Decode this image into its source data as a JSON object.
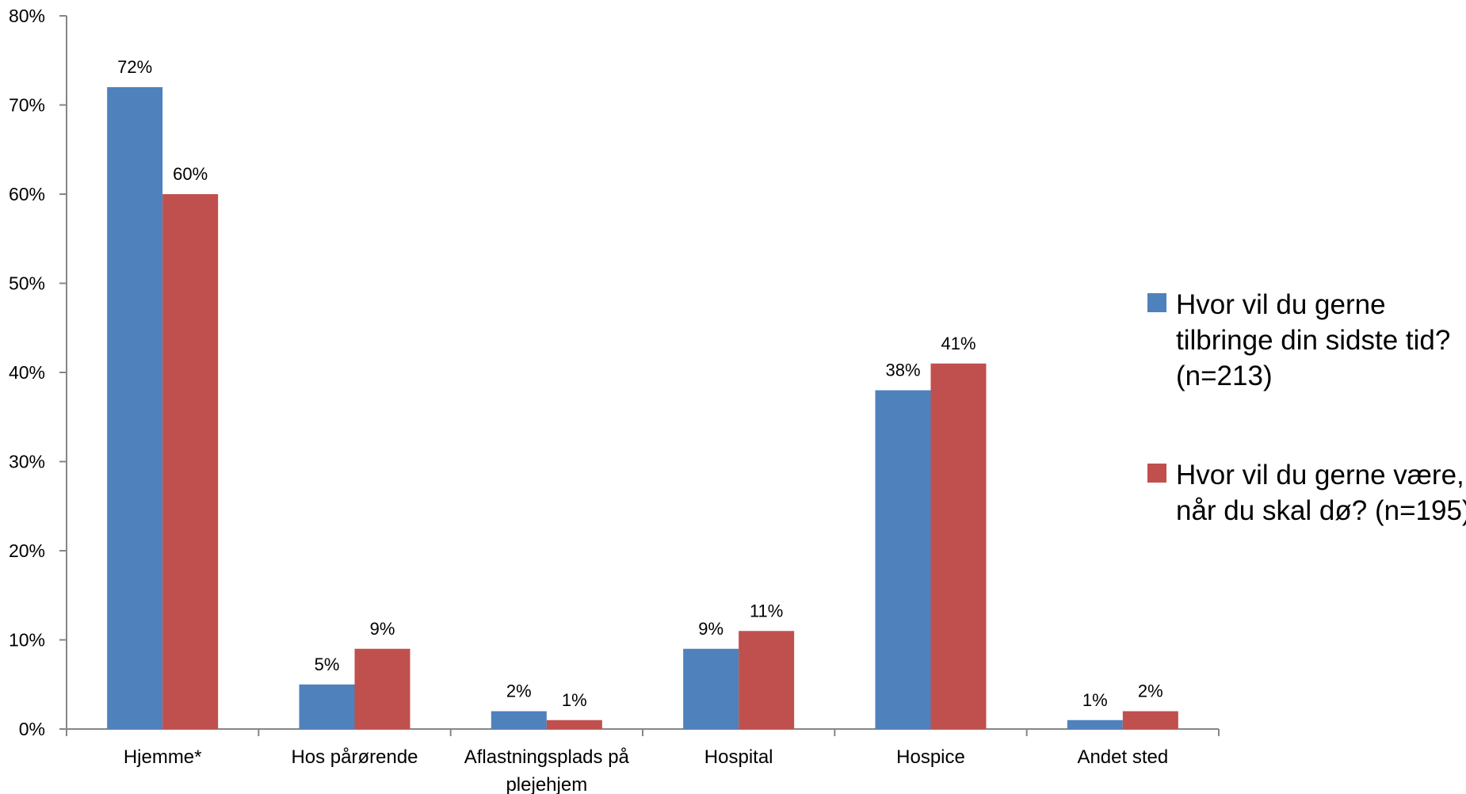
{
  "chart_data": {
    "type": "bar",
    "categories": [
      [
        "Hjemme*"
      ],
      [
        "Hos pårørende"
      ],
      [
        "Aflastningsplads på",
        "plejehjem"
      ],
      [
        "Hospital"
      ],
      [
        "Hospice"
      ],
      [
        "Andet sted"
      ]
    ],
    "series": [
      {
        "name": [
          "Hvor vil du gerne",
          "tilbringe din sidste tid?",
          "(n=213)"
        ],
        "color": "#4F81BD",
        "values": [
          72,
          5,
          2,
          9,
          38,
          1
        ],
        "labels": [
          "72%",
          "5%",
          "2%",
          "9%",
          "38%",
          "1%"
        ]
      },
      {
        "name": [
          "Hvor vil du gerne være,",
          "når du skal dø? (n=195)"
        ],
        "color": "#C0504D",
        "values": [
          60,
          9,
          1,
          11,
          41,
          2
        ],
        "labels": [
          "60%",
          "9%",
          "1%",
          "11%",
          "41%",
          "2%"
        ]
      }
    ],
    "y_ticks": [
      "0%",
      "10%",
      "20%",
      "30%",
      "40%",
      "50%",
      "60%",
      "70%",
      "80%"
    ],
    "ylim": [
      0,
      80
    ],
    "ylabel": "",
    "xlabel": "",
    "grid": false,
    "legend_position": "right"
  }
}
